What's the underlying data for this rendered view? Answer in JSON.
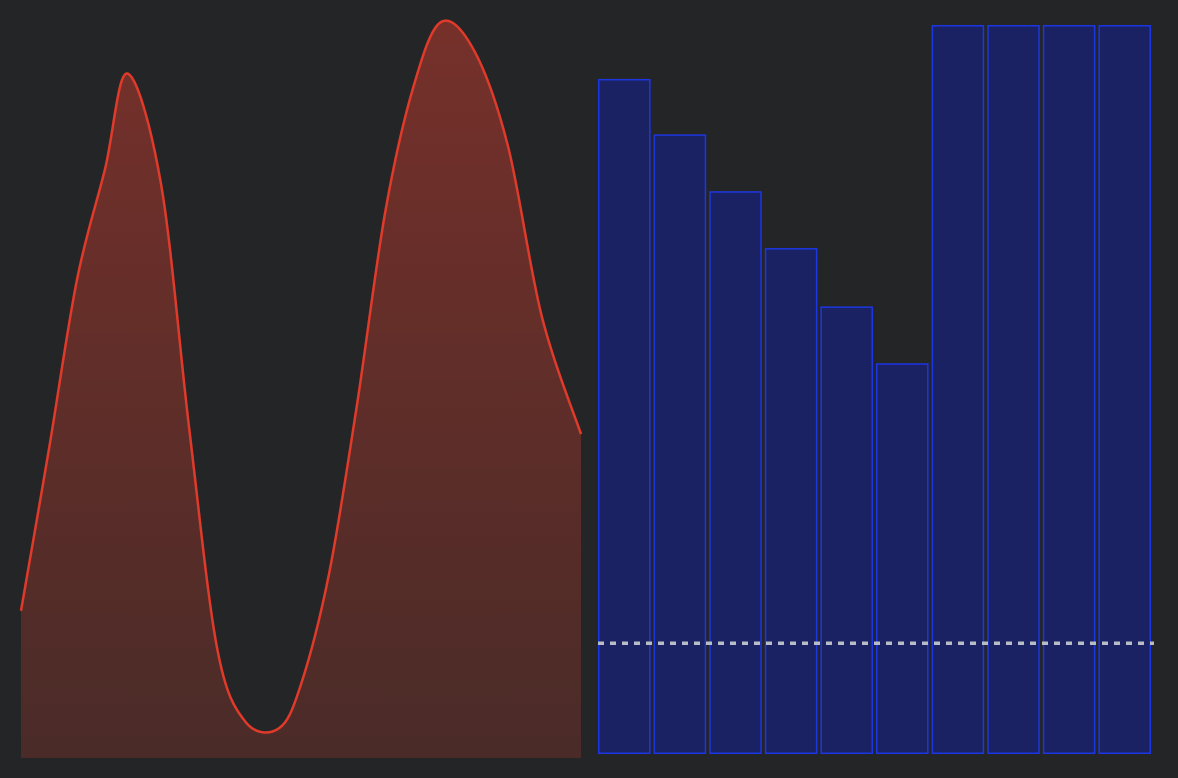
{
  "chart_data": [
    {
      "type": "area",
      "x": [
        0,
        0.05,
        0.1,
        0.15,
        0.19,
        0.25,
        0.3,
        0.35,
        0.4,
        0.46,
        0.5,
        0.55,
        0.6,
        0.65,
        0.7,
        0.75,
        0.81,
        0.87,
        0.93,
        1.0
      ],
      "values": [
        0.2,
        0.42,
        0.65,
        0.8,
        0.93,
        0.78,
        0.45,
        0.15,
        0.05,
        0.04,
        0.1,
        0.25,
        0.48,
        0.74,
        0.91,
        1.0,
        0.96,
        0.83,
        0.6,
        0.44
      ],
      "ylim": [
        0,
        1
      ],
      "colors": {
        "line": "#e03a2a",
        "fill_top": "#76302a",
        "fill_bottom": "#4a2b28"
      }
    },
    {
      "type": "bar",
      "values": [
        0.926,
        0.85,
        0.772,
        0.694,
        0.614,
        0.536,
        1.0,
        1.0,
        1.0,
        1.0
      ],
      "ylim": [
        0,
        1
      ],
      "reference_line": 0.152,
      "colors": {
        "bar_fill": "#1a2263",
        "bar_edge": "#1c36e2",
        "reference": "#b7bcc5"
      }
    }
  ]
}
